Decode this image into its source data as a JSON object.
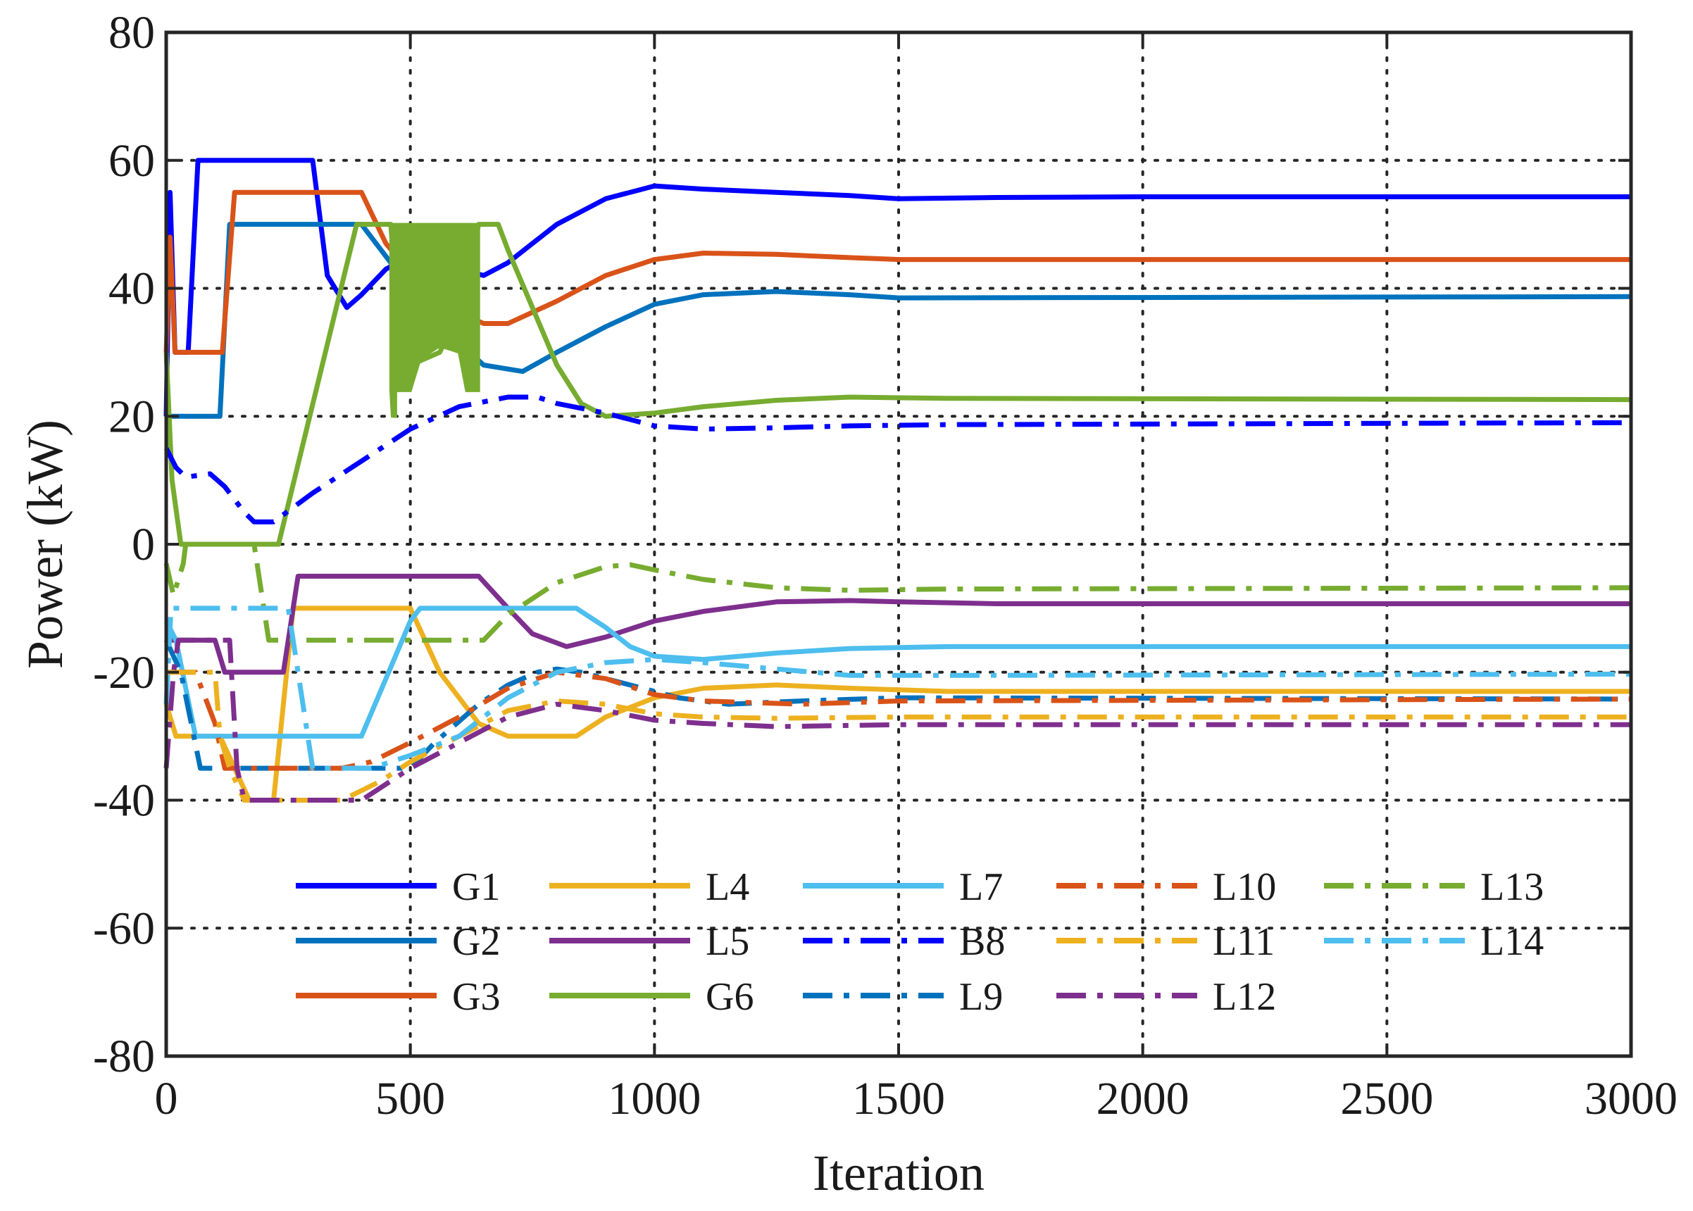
{
  "chart_data": {
    "type": "line",
    "xlabel": "Iteration",
    "ylabel": "Power (kW)",
    "xlim": [
      0,
      3000
    ],
    "ylim": [
      -80,
      80
    ],
    "xticks": [
      0,
      500,
      1000,
      1500,
      2000,
      2500,
      3000
    ],
    "yticks": [
      -80,
      -60,
      -40,
      -20,
      0,
      20,
      40,
      60,
      80
    ],
    "grid": true,
    "legend_position": "lower center, 5 columns",
    "series": [
      {
        "name": "G1",
        "color": "#0000ff",
        "style": "solid",
        "points": [
          [
            0,
            20
          ],
          [
            8,
            55
          ],
          [
            18,
            30
          ],
          [
            30,
            30
          ],
          [
            45,
            30
          ],
          [
            65,
            60
          ],
          [
            300,
            60
          ],
          [
            330,
            42
          ],
          [
            370,
            37
          ],
          [
            400,
            39
          ],
          [
            450,
            43
          ],
          [
            500,
            45
          ],
          [
            600,
            43
          ],
          [
            650,
            42
          ],
          [
            700,
            44
          ],
          [
            800,
            50
          ],
          [
            900,
            54
          ],
          [
            1000,
            56
          ],
          [
            1100,
            55.5
          ],
          [
            1250,
            55
          ],
          [
            1400,
            54.5
          ],
          [
            1500,
            54
          ],
          [
            1700,
            54.2
          ],
          [
            2000,
            54.3
          ],
          [
            3000,
            54.3
          ]
        ]
      },
      {
        "name": "G2",
        "color": "#0072bd",
        "style": "solid",
        "points": [
          [
            0,
            20
          ],
          [
            15,
            20
          ],
          [
            110,
            20
          ],
          [
            130,
            50
          ],
          [
            400,
            50
          ],
          [
            450,
            45
          ],
          [
            550,
            35
          ],
          [
            650,
            28
          ],
          [
            730,
            27
          ],
          [
            800,
            30
          ],
          [
            900,
            34
          ],
          [
            1000,
            37.5
          ],
          [
            1100,
            39
          ],
          [
            1250,
            39.5
          ],
          [
            1400,
            39
          ],
          [
            1500,
            38.5
          ],
          [
            3000,
            38.7
          ]
        ]
      },
      {
        "name": "G3",
        "color": "#d95319",
        "style": "solid",
        "points": [
          [
            0,
            30
          ],
          [
            8,
            48
          ],
          [
            18,
            30
          ],
          [
            115,
            30
          ],
          [
            140,
            55
          ],
          [
            400,
            55
          ],
          [
            450,
            47
          ],
          [
            550,
            38
          ],
          [
            650,
            34.5
          ],
          [
            700,
            34.5
          ],
          [
            800,
            38
          ],
          [
            900,
            42
          ],
          [
            1000,
            44.5
          ],
          [
            1100,
            45.5
          ],
          [
            1250,
            45.3
          ],
          [
            1400,
            44.8
          ],
          [
            1500,
            44.5
          ],
          [
            3000,
            44.5
          ]
        ]
      },
      {
        "name": "L4",
        "color": "#edb120",
        "style": "solid",
        "points": [
          [
            0,
            -25
          ],
          [
            20,
            -30
          ],
          [
            90,
            -30
          ],
          [
            110,
            -30
          ],
          [
            140,
            -35
          ],
          [
            170,
            -40
          ],
          [
            220,
            -40
          ],
          [
            260,
            -10
          ],
          [
            500,
            -10
          ],
          [
            560,
            -20
          ],
          [
            640,
            -28
          ],
          [
            700,
            -30
          ],
          [
            840,
            -30
          ],
          [
            900,
            -27
          ],
          [
            1000,
            -24
          ],
          [
            1100,
            -22.5
          ],
          [
            1250,
            -22
          ],
          [
            1400,
            -22.5
          ],
          [
            1600,
            -23
          ],
          [
            3000,
            -23
          ]
        ]
      },
      {
        "name": "L5",
        "color": "#7e2f8e",
        "style": "solid",
        "points": [
          [
            0,
            -15
          ],
          [
            20,
            -15
          ],
          [
            100,
            -15
          ],
          [
            120,
            -20
          ],
          [
            240,
            -20
          ],
          [
            270,
            -5
          ],
          [
            640,
            -5
          ],
          [
            700,
            -10
          ],
          [
            750,
            -14
          ],
          [
            820,
            -16
          ],
          [
            900,
            -14.5
          ],
          [
            1000,
            -12
          ],
          [
            1100,
            -10.5
          ],
          [
            1250,
            -9
          ],
          [
            1400,
            -8.8
          ],
          [
            1500,
            -9
          ],
          [
            1700,
            -9.3
          ],
          [
            3000,
            -9.3
          ]
        ]
      },
      {
        "name": "G6",
        "color": "#77ac30",
        "style": "solid",
        "points": [
          [
            0,
            30
          ],
          [
            12,
            10
          ],
          [
            30,
            0
          ],
          [
            230,
            0
          ],
          [
            390,
            50
          ],
          [
            460,
            50
          ],
          [
            480,
            30
          ],
          [
            500,
            28
          ],
          [
            560,
            30
          ],
          [
            600,
            36
          ],
          [
            640,
            50
          ],
          [
            680,
            50
          ],
          [
            700,
            46
          ],
          [
            800,
            28
          ],
          [
            850,
            22
          ],
          [
            900,
            20
          ],
          [
            1000,
            20.5
          ],
          [
            1100,
            21.5
          ],
          [
            1250,
            22.5
          ],
          [
            1400,
            23
          ],
          [
            1600,
            22.8
          ],
          [
            3000,
            22.6
          ]
        ]
      },
      {
        "name": "L7",
        "color": "#4dbeee",
        "style": "solid",
        "points": [
          [
            0,
            -12
          ],
          [
            20,
            -15
          ],
          [
            60,
            -30
          ],
          [
            400,
            -30
          ],
          [
            500,
            -12
          ],
          [
            520,
            -10
          ],
          [
            840,
            -10
          ],
          [
            900,
            -13
          ],
          [
            950,
            -16
          ],
          [
            1000,
            -17.5
          ],
          [
            1100,
            -18
          ],
          [
            1250,
            -17
          ],
          [
            1400,
            -16.3
          ],
          [
            1600,
            -16
          ],
          [
            3000,
            -16
          ]
        ]
      },
      {
        "name": "B8",
        "color": "#0000ff",
        "style": "dashdot",
        "points": [
          [
            0,
            15
          ],
          [
            20,
            12
          ],
          [
            40,
            10.5
          ],
          [
            90,
            11
          ],
          [
            120,
            9
          ],
          [
            160,
            5
          ],
          [
            180,
            3.5
          ],
          [
            220,
            3.5
          ],
          [
            300,
            8
          ],
          [
            400,
            13
          ],
          [
            500,
            18
          ],
          [
            600,
            21.5
          ],
          [
            700,
            23
          ],
          [
            760,
            23
          ],
          [
            800,
            22
          ],
          [
            900,
            20.5
          ],
          [
            1000,
            18.5
          ],
          [
            1100,
            18
          ],
          [
            1250,
            18.2
          ],
          [
            1400,
            18.5
          ],
          [
            1600,
            18.7
          ],
          [
            3000,
            19
          ]
        ]
      },
      {
        "name": "L9",
        "color": "#0072bd",
        "style": "dashdot",
        "points": [
          [
            0,
            -15
          ],
          [
            30,
            -20
          ],
          [
            70,
            -35
          ],
          [
            500,
            -35
          ],
          [
            550,
            -31
          ],
          [
            640,
            -25
          ],
          [
            700,
            -22
          ],
          [
            760,
            -20
          ],
          [
            800,
            -19.5
          ],
          [
            850,
            -20
          ],
          [
            950,
            -22
          ],
          [
            1050,
            -24
          ],
          [
            1150,
            -25
          ],
          [
            1300,
            -24.5
          ],
          [
            1500,
            -24
          ],
          [
            3000,
            -24.2
          ]
        ]
      },
      {
        "name": "L10",
        "color": "#d95319",
        "style": "dashdot",
        "points": [
          [
            0,
            -20
          ],
          [
            60,
            -20
          ],
          [
            100,
            -28
          ],
          [
            120,
            -35
          ],
          [
            360,
            -35
          ],
          [
            420,
            -34
          ],
          [
            500,
            -31
          ],
          [
            600,
            -27
          ],
          [
            700,
            -22.5
          ],
          [
            800,
            -20
          ],
          [
            900,
            -21
          ],
          [
            1000,
            -23.5
          ],
          [
            1100,
            -24.5
          ],
          [
            1300,
            -25
          ],
          [
            1500,
            -24.5
          ],
          [
            3000,
            -24.2
          ]
        ]
      },
      {
        "name": "L11",
        "color": "#edb120",
        "style": "dashdot",
        "points": [
          [
            0,
            -20
          ],
          [
            100,
            -20
          ],
          [
            110,
            -30
          ],
          [
            130,
            -35
          ],
          [
            160,
            -40
          ],
          [
            360,
            -40
          ],
          [
            440,
            -37
          ],
          [
            500,
            -34
          ],
          [
            600,
            -30
          ],
          [
            700,
            -26
          ],
          [
            800,
            -24.5
          ],
          [
            900,
            -25
          ],
          [
            1000,
            -26.5
          ],
          [
            1100,
            -27
          ],
          [
            1250,
            -27.2
          ],
          [
            1500,
            -27
          ],
          [
            3000,
            -27
          ]
        ]
      },
      {
        "name": "L12",
        "color": "#7e2f8e",
        "style": "dashdot",
        "points": [
          [
            0,
            -35
          ],
          [
            15,
            -20
          ],
          [
            25,
            -15
          ],
          [
            130,
            -15
          ],
          [
            145,
            -35
          ],
          [
            160,
            -40
          ],
          [
            400,
            -40
          ],
          [
            500,
            -35
          ],
          [
            600,
            -31
          ],
          [
            700,
            -27
          ],
          [
            800,
            -25
          ],
          [
            900,
            -26
          ],
          [
            1000,
            -27.5
          ],
          [
            1100,
            -28
          ],
          [
            1250,
            -28.5
          ],
          [
            1500,
            -28.2
          ],
          [
            3000,
            -28.2
          ]
        ]
      },
      {
        "name": "L13",
        "color": "#77ac30",
        "style": "dashdot",
        "points": [
          [
            0,
            -3
          ],
          [
            15,
            -8
          ],
          [
            35,
            -3
          ],
          [
            40,
            0
          ],
          [
            180,
            0
          ],
          [
            210,
            -15
          ],
          [
            650,
            -15
          ],
          [
            700,
            -11
          ],
          [
            800,
            -6
          ],
          [
            900,
            -3.5
          ],
          [
            950,
            -3.2
          ],
          [
            1000,
            -4
          ],
          [
            1100,
            -5.5
          ],
          [
            1250,
            -6.8
          ],
          [
            1400,
            -7.2
          ],
          [
            1600,
            -7
          ],
          [
            3000,
            -6.8
          ]
        ]
      },
      {
        "name": "L14",
        "color": "#4dbeee",
        "style": "dashdot",
        "points": [
          [
            0,
            -25
          ],
          [
            10,
            -10
          ],
          [
            20,
            -10
          ],
          [
            250,
            -10
          ],
          [
            270,
            -20
          ],
          [
            300,
            -35
          ],
          [
            420,
            -35
          ],
          [
            500,
            -33
          ],
          [
            600,
            -30
          ],
          [
            700,
            -24
          ],
          [
            800,
            -20
          ],
          [
            900,
            -18.5
          ],
          [
            1000,
            -18
          ],
          [
            1100,
            -18.5
          ],
          [
            1250,
            -19.5
          ],
          [
            1400,
            -20.5
          ],
          [
            1600,
            -20.5
          ],
          [
            3000,
            -20.3
          ]
        ]
      }
    ]
  }
}
